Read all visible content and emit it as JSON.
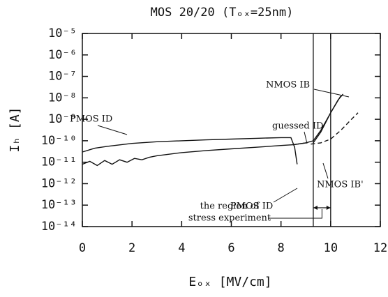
{
  "chart_data": {
    "type": "line",
    "title": "MOS 20/20 (Tₒₓ=25nm)",
    "x_label": "Eₒₓ [MV/cm]",
    "y_label": "Iₕ [A]",
    "log_y": true,
    "xlim": [
      0,
      12
    ],
    "xticks": [
      0,
      2,
      4,
      6,
      8,
      10,
      12
    ],
    "ylim": [
      1e-14,
      1e-05
    ],
    "yticks": [
      {
        "value": 1e-14,
        "label": "10⁻¹⁴"
      },
      {
        "value": 1e-13,
        "label": "10⁻¹³"
      },
      {
        "value": 1e-12,
        "label": "10⁻¹²"
      },
      {
        "value": 1e-11,
        "label": "10⁻¹¹"
      },
      {
        "value": 1e-10,
        "label": "10⁻¹⁰"
      },
      {
        "value": 1e-09,
        "label": "10⁻⁹"
      },
      {
        "value": 1e-08,
        "label": "10⁻⁸"
      },
      {
        "value": 1e-07,
        "label": "10⁻⁷"
      },
      {
        "value": 1e-06,
        "label": "10⁻⁶"
      },
      {
        "value": 1e-05,
        "label": "10⁻⁵"
      }
    ],
    "series": [
      {
        "name": "PMOS ID",
        "color": "#111111",
        "style": "solid",
        "x": [
          0,
          0.5,
          1,
          2,
          3,
          4,
          5,
          6,
          7,
          8,
          8.4,
          8.55,
          8.65
        ],
        "values": [
          3e-11,
          4.5e-11,
          5.5e-11,
          7.5e-11,
          9e-11,
          1e-10,
          1.1e-10,
          1.2e-10,
          1.3e-10,
          1.4e-10,
          1.4e-10,
          5e-11,
          8e-12
        ]
      },
      {
        "name": "PMOS ID",
        "color": "#111111",
        "style": "solid",
        "x": [
          0,
          0.3,
          0.6,
          0.9,
          1.2,
          1.5,
          1.8,
          2.1,
          2.4,
          2.7,
          3,
          4,
          5,
          6,
          7,
          8,
          8.5,
          9
        ],
        "values": [
          8e-12,
          1.1e-11,
          7e-12,
          1.2e-11,
          8e-12,
          1.3e-11,
          1e-11,
          1.5e-11,
          1.3e-11,
          1.7e-11,
          2e-11,
          2.8e-11,
          3.5e-11,
          4.2e-11,
          5e-11,
          6e-11,
          6.5e-11,
          8e-11
        ]
      },
      {
        "name": "guessed ID",
        "color": "#111111",
        "style": "solid",
        "x": [
          8.5,
          9,
          9.3,
          9.6,
          10,
          10.4
        ],
        "values": [
          6.5e-11,
          8e-11,
          1e-10,
          3e-10,
          2e-09,
          1.2e-08
        ]
      },
      {
        "name": "NMOS IB",
        "color": "#111111",
        "style": "solid",
        "x": [
          9.3,
          9.6,
          10,
          10.3,
          10.5
        ],
        "values": [
          8e-11,
          2.5e-10,
          2e-09,
          8e-09,
          1.5e-08
        ]
      },
      {
        "name": "NMOS IB'",
        "color": "#111111",
        "style": "dashed",
        "x": [
          9.2,
          9.6,
          10,
          10.4,
          10.8,
          11.1
        ],
        "values": [
          7e-11,
          8e-11,
          1.2e-10,
          3e-10,
          9e-10,
          2e-09
        ]
      }
    ],
    "region": {
      "x": [
        9.3,
        10
      ],
      "label": [
        "the region of",
        "stress experiment"
      ]
    }
  }
}
